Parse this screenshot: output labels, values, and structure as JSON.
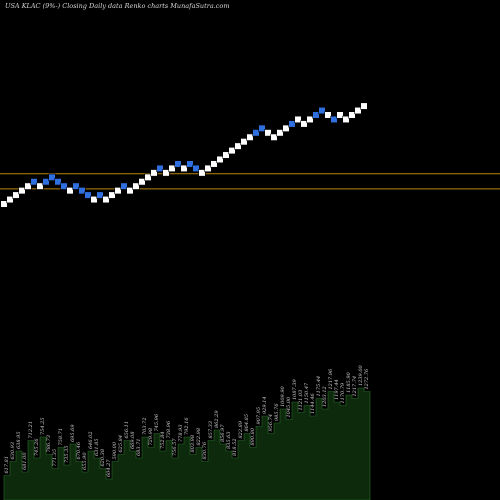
{
  "chart_data": {
    "type": "renko",
    "title": "USA KLAC (9%-)  Closing Daily data  Renko  charts MunafaSutra.com",
    "colors": {
      "background": "#000000",
      "up_brick": "#ffffff",
      "down_brick": "#2f6fe0",
      "reference_line": "#b8860b",
      "volume_fill": "#0d2a0d",
      "volume_line": "#2a6a2a",
      "label_text": "#d0d0d0"
    },
    "brick_levels": [
      0,
      1,
      2,
      3,
      4,
      5,
      4,
      5,
      6,
      5,
      4,
      3,
      4,
      3,
      2,
      1,
      2,
      1,
      2,
      3,
      4,
      3,
      4,
      5,
      6,
      7,
      8,
      7,
      8,
      9,
      8,
      9,
      8,
      7,
      8,
      9,
      10,
      11,
      12,
      13,
      14,
      15,
      16,
      17,
      16,
      15,
      16,
      17,
      18,
      19,
      18,
      19,
      20,
      21,
      20,
      19,
      20,
      19,
      20,
      21,
      22
    ],
    "bricks": [
      "up",
      "up",
      "up",
      "up",
      "up",
      "down",
      "up",
      "down",
      "down",
      "down",
      "down",
      "up",
      "down",
      "down",
      "down",
      "up",
      "down",
      "up",
      "up",
      "up",
      "down",
      "up",
      "up",
      "up",
      "up",
      "up",
      "down",
      "up",
      "up",
      "down",
      "up",
      "down",
      "down",
      "up",
      "up",
      "up",
      "up",
      "up",
      "up",
      "up",
      "up",
      "up",
      "down",
      "down",
      "up",
      "up",
      "up",
      "up",
      "down",
      "up",
      "up",
      "up",
      "down",
      "down",
      "up",
      "down",
      "up",
      "up",
      "up",
      "up",
      "up"
    ],
    "reference_levels": [
      6.8,
      3.4
    ],
    "price_labels": [
      "617.81",
      "630.93",
      "638.95",
      "681.00",
      "712.21",
      "745.26",
      "754.25",
      "786.73",
      "771.35",
      "758.71",
      "735.35",
      "695.69",
      "670.46",
      "655.90",
      "646.02",
      "631.85",
      "620.38",
      "604.27",
      "590.00",
      "625.84",
      "656.11",
      "669.08",
      "683.71",
      "703.72",
      "729.98",
      "745.96",
      "752.84",
      "738.96",
      "756.57",
      "778.93",
      "792.16",
      "803.98",
      "822.98",
      "830.76",
      "857.33",
      "862.29",
      "856.97",
      "835.63",
      "818.52",
      "822.89",
      "864.85",
      "890.80",
      "907.95",
      "929.14",
      "956.74",
      "985.76",
      "1009.90",
      "1045.00",
      "1087.39",
      "1121.03",
      "1150.47",
      "1144.46",
      "1175.44",
      "1203.12",
      "1217.96",
      "1197.44",
      "1170.79",
      "1185.90",
      "1217.74",
      "1239.00",
      "1272.76"
    ],
    "volume": [
      0.35,
      0.55,
      0.7,
      0.4,
      0.85,
      0.6,
      0.9,
      0.65,
      0.45,
      0.75,
      0.5,
      0.8,
      0.55,
      0.4,
      0.7,
      0.6,
      0.45,
      0.3,
      0.55,
      0.65,
      0.85,
      0.7,
      0.6,
      0.9,
      0.75,
      0.95,
      0.7,
      0.85,
      0.6,
      0.8,
      0.9,
      0.65,
      0.75,
      0.55,
      0.85,
      1.0,
      0.8,
      0.7,
      0.6,
      0.85,
      0.95,
      0.75,
      1.05,
      1.2,
      0.95,
      1.1,
      1.3,
      1.15,
      1.4,
      1.25,
      1.35,
      1.2,
      1.45,
      1.3,
      1.55,
      1.4,
      1.35,
      1.5,
      1.45,
      1.6,
      1.55
    ]
  }
}
